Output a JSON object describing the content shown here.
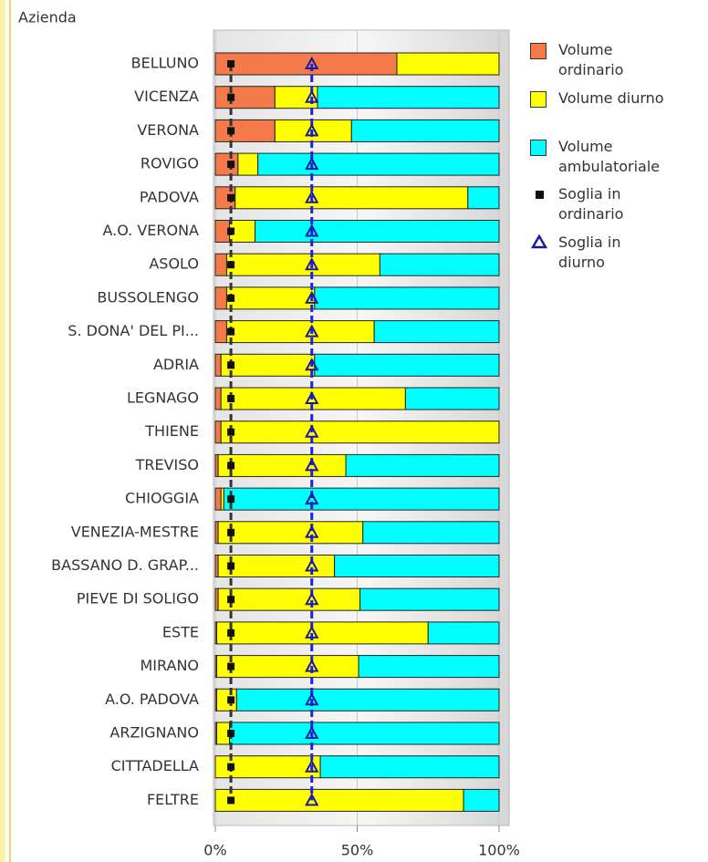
{
  "chart_data": {
    "type": "stacked_barh",
    "title": "Azienda",
    "categories": [
      "BELLUNO",
      "VICENZA",
      "VERONA",
      "ROVIGO",
      "PADOVA",
      "A.O. VERONA",
      "ASOLO",
      "BUSSOLENGO",
      "S. DONA' DEL PI...",
      "ADRIA",
      "LEGNAGO",
      "THIENE",
      "TREVISO",
      "CHIOGGIA",
      "VENEZIA-MESTRE",
      "BASSANO D. GRAP...",
      "PIEVE DI SOLIGO",
      "ESTE",
      "MIRANO",
      "A.O. PADOVA",
      "ARZIGNANO",
      "CITTADELLA",
      "FELTRE"
    ],
    "series": [
      {
        "name": "Volume ordinario",
        "color": "#f47a4a",
        "values": [
          64,
          21,
          21,
          8,
          7,
          5,
          4,
          4,
          4,
          2,
          2,
          2,
          1,
          2,
          1,
          1,
          1,
          0.5,
          0.5,
          0.5,
          0.5,
          0,
          0
        ]
      },
      {
        "name": "Volume diurno",
        "color": "#ffff00",
        "values": [
          36,
          15,
          27,
          7,
          82,
          9,
          54,
          31,
          52,
          33,
          65,
          98,
          45,
          1,
          51,
          41,
          50,
          74.5,
          50,
          7,
          4.5,
          37,
          87.5
        ]
      },
      {
        "name": "Volume ambulatoriale",
        "color": "#00ffff",
        "values": [
          0,
          64,
          52,
          85,
          11,
          86,
          42,
          65,
          44,
          65,
          33,
          0,
          54,
          97,
          48,
          58,
          49,
          25,
          49.5,
          92.5,
          95,
          63,
          12.5
        ]
      }
    ],
    "thresholds": [
      {
        "name": "Soglia in ordinario",
        "color": "#111111",
        "marker": "square",
        "values": [
          5.5,
          5.5,
          5.5,
          5.5,
          5.5,
          5.5,
          5.5,
          5.5,
          5.5,
          5.5,
          5.5,
          5.5,
          5.5,
          5.5,
          5.5,
          5.5,
          5.5,
          5.5,
          5.5,
          5.5,
          5.5,
          5.5,
          5.5
        ]
      },
      {
        "name": "Soglia in diurno",
        "color": "#1a1aa0",
        "marker": "triangle",
        "values": [
          34,
          34,
          34,
          34,
          34,
          34,
          34,
          34,
          34,
          34,
          34,
          34,
          34,
          34,
          34,
          34,
          34,
          34,
          34,
          34,
          34,
          34,
          34
        ]
      }
    ],
    "xlim": [
      0,
      100
    ],
    "xticks": [
      {
        "value": 0,
        "label": "0%"
      },
      {
        "value": 50,
        "label": "50%"
      },
      {
        "value": 100,
        "label": "100%"
      }
    ],
    "grid": true,
    "legend": "right"
  }
}
